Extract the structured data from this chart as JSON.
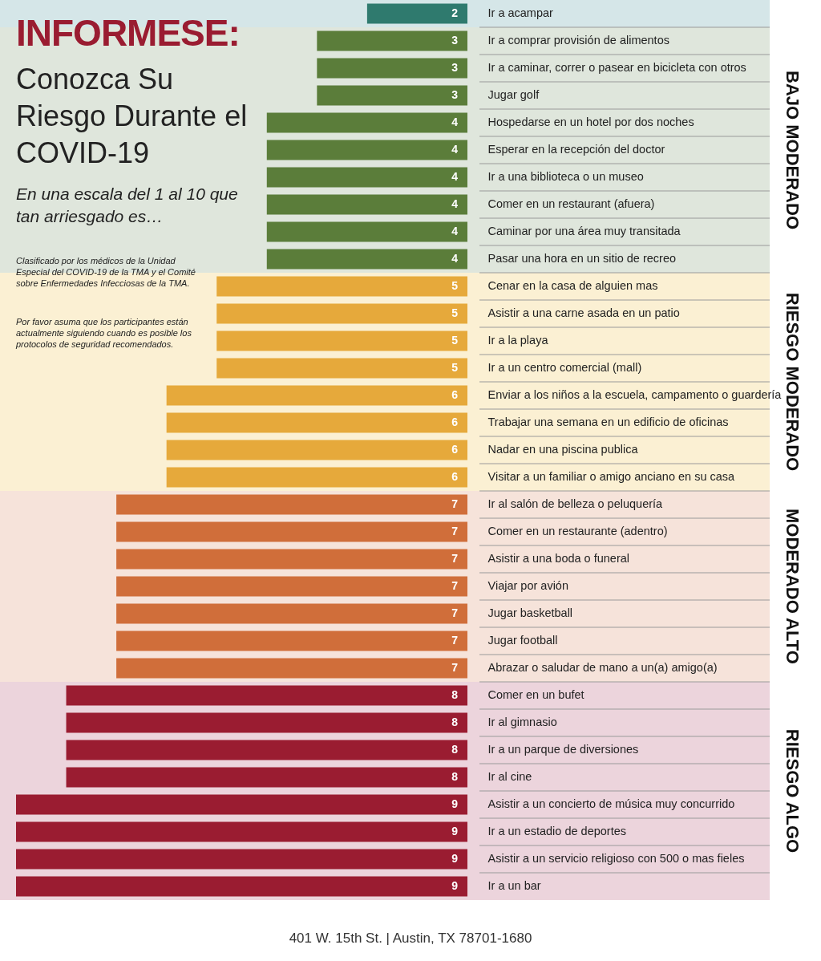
{
  "chart_data": {
    "type": "bar",
    "orientation": "horizontal",
    "title": "INFORMESE:",
    "subtitle": "Conozca Su Riesgo Durante el COVID-19",
    "categories": [
      "Ir a acampar",
      "Ir a comprar provisión de alimentos",
      "Ir a caminar, correr o pasear en bicicleta con otros",
      "Jugar golf",
      "Hospedarse en un hotel por dos noches",
      "Esperar en la recepción del doctor",
      "Ir a una biblioteca o un museo",
      "Comer en un restaurant (afuera)",
      "Caminar por una área muy transitada",
      "Pasar una hora en un sitio de recreo",
      "Cenar en la casa de alguien mas",
      "Asistir a una carne asada en un patio",
      "Ir a la playa",
      "Ir a un centro comercial (mall)",
      "Enviar a los niños a la escuela, campamento o guardería",
      "Trabajar una semana en un edificio de oficinas",
      "Nadar en una piscina publica",
      "Visitar a un familiar o amigo anciano en su casa",
      "Ir al salón de belleza o peluquería",
      "Comer en un restaurante (adentro)",
      "Asistir a una boda o funeral",
      "Viajar por avión",
      "Jugar basketball",
      "Jugar football",
      "Abrazar o saludar de mano a un(a) amigo(a)",
      "Comer en un bufet",
      "Ir al gimnasio",
      "Ir a un parque de diversiones",
      "Ir al cine",
      "Asistir a un concierto de música muy concurrido",
      "Ir a un estadio de deportes",
      "Asistir a un servicio religioso con 500 o mas fieles",
      "Ir a un bar"
    ],
    "values": [
      2,
      3,
      3,
      3,
      4,
      4,
      4,
      4,
      4,
      4,
      5,
      5,
      5,
      5,
      6,
      6,
      6,
      6,
      7,
      7,
      7,
      7,
      7,
      7,
      7,
      8,
      8,
      8,
      8,
      9,
      9,
      9,
      9
    ],
    "colors": [
      "#2f7a6e",
      "#5b7d3a",
      "#5b7d3a",
      "#5b7d3a",
      "#5b7d3a",
      "#5b7d3a",
      "#5b7d3a",
      "#5b7d3a",
      "#5b7d3a",
      "#5b7d3a",
      "#e6a93b",
      "#e6a93b",
      "#e6a93b",
      "#e6a93b",
      "#e6a93b",
      "#e6a93b",
      "#e6a93b",
      "#e6a93b",
      "#d06e3a",
      "#d06e3a",
      "#d06e3a",
      "#d06e3a",
      "#d06e3a",
      "#d06e3a",
      "#d06e3a",
      "#9a1c31",
      "#9a1c31",
      "#9a1c31",
      "#9a1c31",
      "#9a1c31",
      "#9a1c31",
      "#9a1c31",
      "#9a1c31"
    ],
    "data_labels": true,
    "bands": [
      {
        "axis": "y",
        "from": "Ir a acampar",
        "to": "Ir a acampar",
        "color": "#d5e6e8"
      },
      {
        "axis": "y",
        "from": "Ir a comprar provisión de alimentos",
        "to": "Pasar una hora en un sitio de recreo",
        "label": "BAJO MODERADO",
        "color": "#dfe6dc"
      },
      {
        "axis": "y",
        "from": "Cenar en la casa de alguien mas",
        "to": "Visitar a un familiar o amigo anciano en su casa",
        "label": "RIESGO MODERADO",
        "color": "#fbf0d3"
      },
      {
        "axis": "y",
        "from": "Ir al salón de belleza o peluquería",
        "to": "Abrazar o saludar de mano a un(a) amigo(a)",
        "label": "MODERADO ALTO",
        "color": "#f6e3da"
      },
      {
        "axis": "y",
        "from": "Comer en un bufet",
        "to": "Ir a un bar",
        "label": "RIESGO ALGO",
        "color": "#ecd4dc"
      }
    ],
    "annotations": [
      "En una escala del 1 al 10 que tan arriesgado es…",
      "Clasificado por los médicos de la Unidad Especial del COVID-19 de la TMA y el Comité sobre Enfermedades Infecciosas de la TMA.",
      "Por favor asuma que los participantes están actualmente siguiendo cuando es posible los protocolos de seguridad recomendados.",
      "401 W. 15th St.  |  Austin, TX 78701-1680"
    ]
  }
}
